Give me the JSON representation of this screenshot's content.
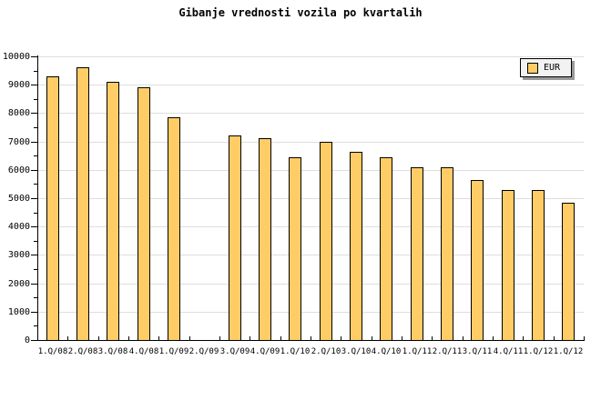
{
  "chart_data": {
    "type": "bar",
    "title": "Gibanje vrednosti vozila po kvartalih",
    "categories": [
      "1.Q/08",
      "2.Q/08",
      "3.Q/08",
      "4.Q/08",
      "1.Q/09",
      "2.Q/09",
      "3.Q/09",
      "4.Q/09",
      "1.Q/10",
      "2.Q/10",
      "3.Q/10",
      "4.Q/10",
      "1.Q/11",
      "2.Q/11",
      "3.Q/11",
      "4.Q/11",
      "1.Q/12",
      "1.Q/12"
    ],
    "values": [
      9300,
      9600,
      9100,
      8900,
      7850,
      0,
      7200,
      7100,
      6450,
      7000,
      6650,
      6450,
      6100,
      6100,
      5650,
      5300,
      5300,
      4850
    ],
    "legend": {
      "label": "EUR",
      "position": "top-right"
    },
    "xlabel": "",
    "ylabel": "",
    "ylim": [
      0,
      10000
    ],
    "y_major_step": 1000,
    "y_minor_step": 500,
    "y_tick_labels": [
      "0",
      "1000",
      "2000",
      "3000",
      "4000",
      "5000",
      "6000",
      "7000",
      "8000",
      "9000",
      "10000"
    ],
    "grid": "horizontal-major",
    "colors": {
      "bar_fill": "#FFCC66",
      "bar_border": "#000000",
      "grid": "#DEDEDE",
      "axis": "#000000",
      "text": "#000000",
      "legend_bg": "#F2F2F2",
      "legend_shadow": "#999999",
      "background": "#FFFFFF"
    }
  }
}
